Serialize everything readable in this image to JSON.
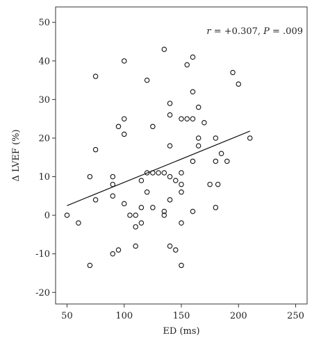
{
  "chart_data": {
    "type": "scatter",
    "xlabel": "ED (ms)",
    "ylabel": "Δ LVEF (%)",
    "xlim": [
      40,
      260
    ],
    "ylim": [
      -23,
      54
    ],
    "x_ticks": [
      50,
      100,
      150,
      200,
      250
    ],
    "y_ticks": [
      -20,
      -10,
      0,
      10,
      20,
      30,
      40,
      50
    ],
    "grid": false,
    "annotation": {
      "r_label": "r",
      "r_value": " = +0.307, ",
      "p_label": "P",
      "p_value": " = .009"
    },
    "regression_line": {
      "x": [
        50,
        210
      ],
      "y": [
        2.5,
        21.8
      ]
    },
    "points": [
      {
        "x": 50,
        "y": 0
      },
      {
        "x": 60,
        "y": -2
      },
      {
        "x": 70,
        "y": 10
      },
      {
        "x": 70,
        "y": -13
      },
      {
        "x": 75,
        "y": 36
      },
      {
        "x": 75,
        "y": 17
      },
      {
        "x": 75,
        "y": 4
      },
      {
        "x": 90,
        "y": 10
      },
      {
        "x": 90,
        "y": 8
      },
      {
        "x": 90,
        "y": 5
      },
      {
        "x": 90,
        "y": -10
      },
      {
        "x": 95,
        "y": 23
      },
      {
        "x": 95,
        "y": -9
      },
      {
        "x": 100,
        "y": 40
      },
      {
        "x": 100,
        "y": 25
      },
      {
        "x": 100,
        "y": 21
      },
      {
        "x": 100,
        "y": 3
      },
      {
        "x": 105,
        "y": 0
      },
      {
        "x": 110,
        "y": 0
      },
      {
        "x": 110,
        "y": -3
      },
      {
        "x": 110,
        "y": -8
      },
      {
        "x": 115,
        "y": 9
      },
      {
        "x": 115,
        "y": 2
      },
      {
        "x": 115,
        "y": -2
      },
      {
        "x": 120,
        "y": 35
      },
      {
        "x": 120,
        "y": 11
      },
      {
        "x": 120,
        "y": 6
      },
      {
        "x": 125,
        "y": 23
      },
      {
        "x": 125,
        "y": 11
      },
      {
        "x": 125,
        "y": 2
      },
      {
        "x": 130,
        "y": 11
      },
      {
        "x": 135,
        "y": 43
      },
      {
        "x": 135,
        "y": 11
      },
      {
        "x": 135,
        "y": 1
      },
      {
        "x": 135,
        "y": 0
      },
      {
        "x": 140,
        "y": 29
      },
      {
        "x": 140,
        "y": 26
      },
      {
        "x": 140,
        "y": 18
      },
      {
        "x": 140,
        "y": 10
      },
      {
        "x": 140,
        "y": 4
      },
      {
        "x": 140,
        "y": -8
      },
      {
        "x": 145,
        "y": 9
      },
      {
        "x": 145,
        "y": -9
      },
      {
        "x": 150,
        "y": 25
      },
      {
        "x": 150,
        "y": 11
      },
      {
        "x": 150,
        "y": 8
      },
      {
        "x": 150,
        "y": 6
      },
      {
        "x": 150,
        "y": -2
      },
      {
        "x": 150,
        "y": -13
      },
      {
        "x": 155,
        "y": 39
      },
      {
        "x": 155,
        "y": 25
      },
      {
        "x": 160,
        "y": 41
      },
      {
        "x": 160,
        "y": 32
      },
      {
        "x": 160,
        "y": 25
      },
      {
        "x": 160,
        "y": 14
      },
      {
        "x": 160,
        "y": 1
      },
      {
        "x": 165,
        "y": 28
      },
      {
        "x": 165,
        "y": 20
      },
      {
        "x": 165,
        "y": 18
      },
      {
        "x": 170,
        "y": 24
      },
      {
        "x": 175,
        "y": 8
      },
      {
        "x": 180,
        "y": 20
      },
      {
        "x": 180,
        "y": 14
      },
      {
        "x": 180,
        "y": 2
      },
      {
        "x": 182,
        "y": 8
      },
      {
        "x": 185,
        "y": 16
      },
      {
        "x": 190,
        "y": 14
      },
      {
        "x": 195,
        "y": 37
      },
      {
        "x": 200,
        "y": 34
      },
      {
        "x": 210,
        "y": 20
      }
    ]
  }
}
